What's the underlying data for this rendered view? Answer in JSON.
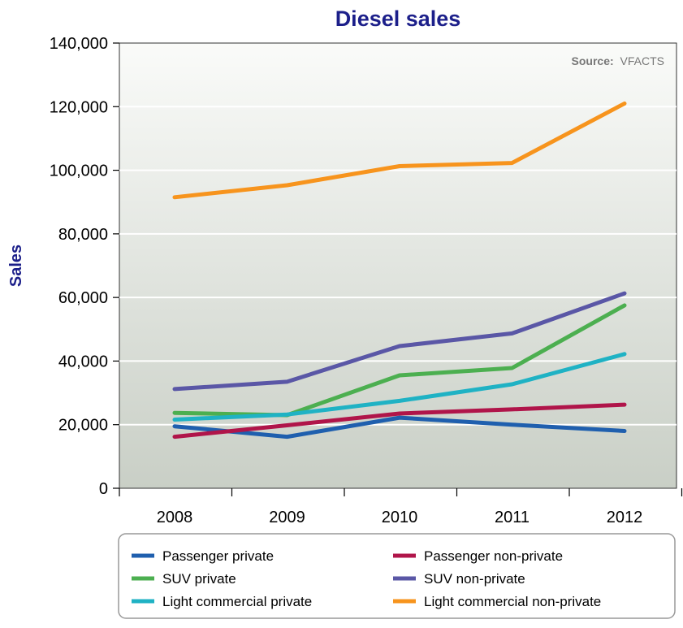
{
  "chart_data": {
    "type": "line",
    "title": "Diesel sales",
    "source_label": "Source:",
    "source_value": "VFACTS",
    "xlabel": "",
    "ylabel": "Sales",
    "x": [
      "2008",
      "2009",
      "2010",
      "2011",
      "2012"
    ],
    "ylim": [
      0,
      140000
    ],
    "yticks": [
      0,
      20000,
      40000,
      60000,
      80000,
      100000,
      120000,
      140000
    ],
    "ytick_labels": [
      "0",
      "20,000",
      "40,000",
      "60,000",
      "80,000",
      "100,000",
      "120,000",
      "140,000"
    ],
    "grid": true,
    "legend_position": "bottom",
    "series": [
      {
        "name": "Passenger private",
        "color": "#1f5fae",
        "values": [
          19500,
          16200,
          22200,
          20000,
          18000
        ]
      },
      {
        "name": "Passenger non-private",
        "color": "#b0154a",
        "values": [
          16200,
          19800,
          23500,
          24800,
          26300
        ]
      },
      {
        "name": "SUV private",
        "color": "#4caf50",
        "values": [
          23700,
          23000,
          35500,
          37800,
          57500
        ]
      },
      {
        "name": "SUV non-private",
        "color": "#5a57a6",
        "values": [
          31200,
          33500,
          44700,
          48700,
          61300
        ]
      },
      {
        "name": "Light commercial private",
        "color": "#1fb2c4",
        "values": [
          21600,
          23200,
          27500,
          32700,
          42200
        ]
      },
      {
        "name": "Light commercial non-private",
        "color": "#f7941d",
        "values": [
          91500,
          95300,
          101300,
          102300,
          121000
        ]
      }
    ]
  }
}
